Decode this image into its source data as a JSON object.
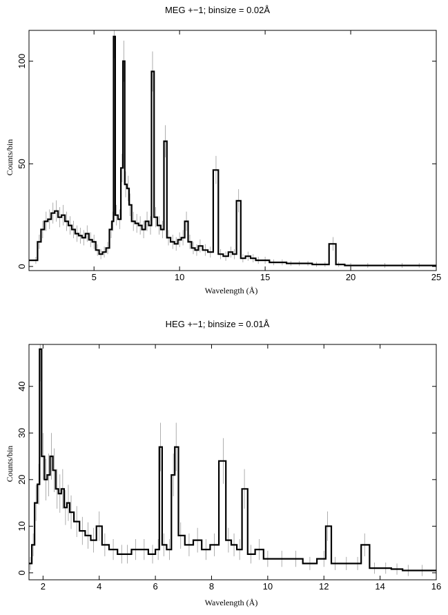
{
  "chart_data": [
    {
      "type": "line",
      "style": "step histogram with error bars",
      "title": "MEG +−1; binsize = 0.02Å",
      "xlabel": "Wavelength (Å)",
      "ylabel": "Counts/bin",
      "xlim": [
        1.2,
        25
      ],
      "ylim": [
        -2,
        115
      ],
      "xticks": [
        5,
        10,
        15,
        20,
        25
      ],
      "yticks": [
        0,
        50,
        100
      ],
      "grid": false,
      "series": [
        {
          "x": [
            1.6,
            1.8,
            2.0,
            2.2,
            2.4,
            2.6,
            2.8,
            3.0,
            3.2,
            3.4,
            3.6,
            3.8,
            4.0,
            4.2,
            4.4,
            4.6,
            4.8,
            5.0,
            5.2,
            5.4,
            5.6,
            5.8,
            6.0,
            6.1,
            6.18,
            6.3,
            6.5,
            6.64,
            6.74,
            6.85,
            7.0,
            7.1,
            7.3,
            7.5,
            7.7,
            7.9,
            8.1,
            8.3,
            8.42,
            8.6,
            8.8,
            9.0,
            9.17,
            9.35,
            9.6,
            9.8,
            10.0,
            10.2,
            10.4,
            10.6,
            10.8,
            11.0,
            11.2,
            11.5,
            11.8,
            12.13,
            12.4,
            12.7,
            13.0,
            13.2,
            13.45,
            13.7,
            14.0,
            14.3,
            14.6,
            15.0,
            15.5,
            16.0,
            16.5,
            17.0,
            17.5,
            18.0,
            18.5,
            18.97,
            19.3,
            20,
            21,
            22,
            23,
            24,
            25
          ],
          "y": [
            3,
            12,
            18,
            22,
            23,
            26,
            27,
            24,
            25,
            22,
            20,
            18,
            16,
            15,
            14,
            16,
            13,
            12,
            8,
            6,
            7,
            9,
            18,
            22,
            112,
            25,
            23,
            48,
            100,
            40,
            38,
            30,
            22,
            21,
            20,
            18,
            22,
            20,
            95,
            24,
            20,
            18,
            61,
            14,
            12,
            11,
            13,
            14,
            22,
            12,
            9,
            8,
            10,
            8,
            7,
            47,
            6,
            5,
            7,
            6,
            32,
            4,
            5,
            4,
            3,
            3,
            2,
            2,
            1.5,
            1.5,
            1.5,
            1,
            1,
            11,
            1,
            0.5,
            0.5,
            0.5,
            0.5,
            0.5,
            0.5
          ]
        }
      ]
    },
    {
      "type": "line",
      "style": "step histogram with error bars",
      "title": "HEG +−1; binsize = 0.01Å",
      "xlabel": "Wavelength (Å)",
      "ylabel": "Counts/bin",
      "xlim": [
        1.5,
        16
      ],
      "ylim": [
        -1.5,
        49
      ],
      "xticks": [
        2,
        4,
        6,
        8,
        10,
        12,
        14,
        16
      ],
      "yticks": [
        0,
        10,
        20,
        30,
        40
      ],
      "grid": false,
      "series": [
        {
          "x": [
            1.55,
            1.65,
            1.75,
            1.85,
            1.9,
            2.0,
            2.1,
            2.2,
            2.3,
            2.4,
            2.5,
            2.6,
            2.7,
            2.8,
            2.9,
            3.0,
            3.2,
            3.4,
            3.6,
            3.8,
            4.0,
            4.2,
            4.5,
            4.8,
            5.0,
            5.3,
            5.6,
            5.9,
            6.1,
            6.18,
            6.3,
            6.5,
            6.64,
            6.74,
            6.9,
            7.2,
            7.5,
            7.8,
            8.1,
            8.42,
            8.6,
            8.8,
            9.0,
            9.17,
            9.4,
            9.7,
            10.0,
            10.5,
            11.0,
            11.5,
            12.0,
            12.13,
            12.4,
            12.8,
            13.2,
            13.45,
            13.8,
            14.2,
            14.6,
            15.0,
            15.5,
            16.0
          ],
          "y": [
            2,
            6,
            15,
            19,
            48,
            25,
            20,
            21,
            25,
            22,
            18,
            17,
            18,
            14,
            15,
            13,
            11,
            9,
            8,
            7,
            10,
            6,
            5,
            4,
            4,
            5,
            5,
            4,
            5,
            27,
            6,
            5,
            21,
            27,
            8,
            6,
            7,
            5,
            6,
            24,
            7,
            6,
            5,
            18,
            4,
            5,
            3,
            3,
            3,
            2,
            3,
            10,
            2,
            2,
            2,
            6,
            1,
            1,
            0.8,
            0.5,
            0.5,
            0.5
          ]
        }
      ]
    }
  ]
}
